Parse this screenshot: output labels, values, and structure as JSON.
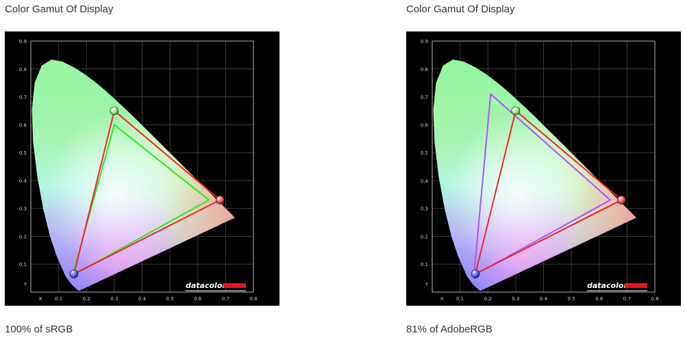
{
  "chart_data": [
    {
      "type": "scatter",
      "title": "Color Gamut Of Display",
      "caption": "100% of sRGB",
      "xlabel": "X",
      "ylabel": "Y",
      "xlim": [
        0,
        0.8
      ],
      "ylim": [
        0,
        0.9
      ],
      "xticks": [
        "X",
        "0.1",
        "0.2",
        "0.3",
        "0.4",
        "0.5",
        "0.6",
        "0.7",
        "0.8"
      ],
      "yticks": [
        "Y",
        "0.1",
        "0.2",
        "0.3",
        "0.4",
        "0.5",
        "0.6",
        "0.7",
        "0.8",
        "0.9"
      ],
      "brand": "datacolor",
      "display_gamut": {
        "points": [
          [
            0.68,
            0.33
          ],
          [
            0.3,
            0.65
          ],
          [
            0.155,
            0.065
          ]
        ],
        "color": "#ff2020"
      },
      "reference_gamut": {
        "points": [
          [
            0.64,
            0.33
          ],
          [
            0.3,
            0.6
          ],
          [
            0.15,
            0.06
          ]
        ],
        "color": "#22ee22"
      }
    },
    {
      "type": "scatter",
      "title": "Color Gamut Of Display",
      "caption": "81% of AdobeRGB",
      "xlabel": "X",
      "ylabel": "Y",
      "xlim": [
        0,
        0.8
      ],
      "ylim": [
        0,
        0.9
      ],
      "xticks": [
        "X",
        "0.1",
        "0.2",
        "0.3",
        "0.4",
        "0.5",
        "0.6",
        "0.7",
        "0.8"
      ],
      "yticks": [
        "Y",
        "0.1",
        "0.2",
        "0.3",
        "0.4",
        "0.5",
        "0.6",
        "0.7",
        "0.8",
        "0.9"
      ],
      "brand": "datacolor",
      "display_gamut": {
        "points": [
          [
            0.68,
            0.33
          ],
          [
            0.3,
            0.65
          ],
          [
            0.155,
            0.065
          ]
        ],
        "color": "#ff2020"
      },
      "reference_gamut": {
        "points": [
          [
            0.64,
            0.33
          ],
          [
            0.21,
            0.71
          ],
          [
            0.15,
            0.06
          ]
        ],
        "color": "#aa55ff"
      }
    }
  ]
}
